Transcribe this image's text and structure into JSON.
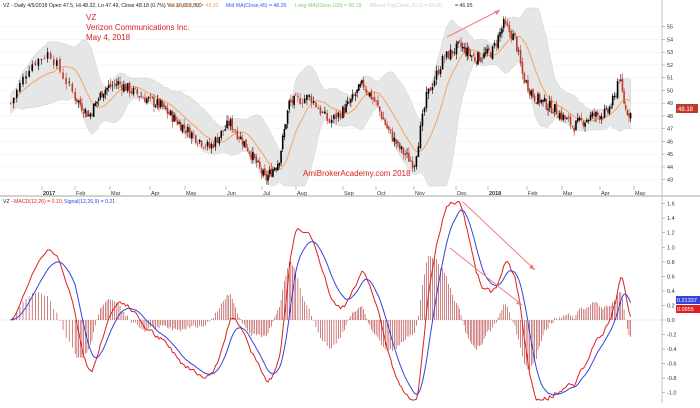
{
  "header": {
    "symbol": "VZ",
    "interval": "Daily",
    "date": "4/5/2018",
    "open": "47.5",
    "high": "48.32",
    "low": "47.49",
    "close": "48.18 (0.7%)",
    "vol": "10,659,800",
    "line_text": "VZ - Daily 4/5/2018 Open 47.5, Hi 48.32, Lo 47.49, Close 48.18 (0.7%) Vol 10,659,800",
    "ma_items": [
      {
        "label": "MA(Close,15) = 48.93",
        "color": "#f4a460"
      },
      {
        "label": "Mid MA(Close,45) = 48.26",
        "color": "#3355ff"
      },
      {
        "label": "Long MA(Close,100) = 50.19",
        "color": "#7ccf6a"
      },
      {
        "label": "BBand Top(Close,20,2) = 50.90,",
        "color": "#cfcfcf"
      },
      {
        "label": "= 46.95",
        "color": "#333333"
      }
    ]
  },
  "annotation": {
    "ticker": "VZ",
    "company": "Verizon Communications Inc.",
    "date": "May 4, 2018",
    "watermark": "AmiBrokerAcademy.com  2018"
  },
  "macd_header": {
    "prefix": "VZ - ",
    "macd_label": "MACD(12,26) = 0.10,",
    "signal_label": "Signal(12,26,9) = 0.21"
  },
  "colors": {
    "up": "#000000",
    "down": "#c0392b",
    "band_fill": "#e6e6e6",
    "ma_short": "#f4a460",
    "macd_line": "#e02020",
    "signal_line": "#3344dd",
    "histogram": "#b03030",
    "annotation": "#d92020",
    "trend_arrow": "#ef8080"
  },
  "axis_labels": {
    "months": [
      "2017",
      "Feb",
      "Mar",
      "Apr",
      "May",
      "Jun",
      "Jul",
      "Aug",
      "Sep",
      "Oct",
      "Nov",
      "Dec",
      "2018",
      "Feb",
      "Mar",
      "Apr",
      "May"
    ]
  },
  "price_tag": "48.18",
  "macd_tags": [
    "0.21337",
    "0.0955"
  ],
  "chart_data": [
    {
      "type": "candlestick",
      "title": "VZ - Daily",
      "series_overlays": [
        "MA(Close,15)",
        "Bollinger Band (Close,20,2)"
      ],
      "ylim": [
        42.5,
        56
      ],
      "yticks": [
        43,
        44,
        45,
        46,
        47,
        48,
        49,
        50,
        51,
        52,
        53,
        54,
        55
      ],
      "last_close": 48.18,
      "knots": [
        {
          "m": 0,
          "p": 49.0
        },
        {
          "m": 0.3,
          "p": 52.0
        },
        {
          "m": 0.6,
          "p": 53.0
        },
        {
          "m": 1.0,
          "p": 49.5
        },
        {
          "m": 1.4,
          "p": 48.0
        },
        {
          "m": 1.8,
          "p": 50.0
        },
        {
          "m": 2.2,
          "p": 50.6
        },
        {
          "m": 2.8,
          "p": 49.5
        },
        {
          "m": 3.3,
          "p": 48.8
        },
        {
          "m": 4.0,
          "p": 47.0
        },
        {
          "m": 4.6,
          "p": 45.5
        },
        {
          "m": 5.1,
          "p": 47.5
        },
        {
          "m": 5.6,
          "p": 45.5
        },
        {
          "m": 6.1,
          "p": 43.0
        },
        {
          "m": 6.5,
          "p": 44.5
        },
        {
          "m": 6.8,
          "p": 49.0
        },
        {
          "m": 7.3,
          "p": 49.5
        },
        {
          "m": 7.7,
          "p": 47.5
        },
        {
          "m": 8.2,
          "p": 49.0
        },
        {
          "m": 8.6,
          "p": 50.5
        },
        {
          "m": 9.0,
          "p": 49.0
        },
        {
          "m": 9.3,
          "p": 47.0
        },
        {
          "m": 9.6,
          "p": 45.5
        },
        {
          "m": 10.0,
          "p": 44.2
        },
        {
          "m": 10.3,
          "p": 49.5
        },
        {
          "m": 10.7,
          "p": 52.5
        },
        {
          "m": 11.1,
          "p": 53.5
        },
        {
          "m": 11.6,
          "p": 52.5
        },
        {
          "m": 12.1,
          "p": 53.0
        },
        {
          "m": 12.4,
          "p": 55.2
        },
        {
          "m": 12.7,
          "p": 54.0
        },
        {
          "m": 12.9,
          "p": 51.0
        },
        {
          "m": 13.2,
          "p": 49.5
        },
        {
          "m": 13.8,
          "p": 48.5
        },
        {
          "m": 14.3,
          "p": 47.2
        },
        {
          "m": 14.8,
          "p": 48.0
        },
        {
          "m": 15.2,
          "p": 48.2
        },
        {
          "m": 15.45,
          "p": 49.5
        },
        {
          "m": 15.55,
          "p": 51.3
        },
        {
          "m": 15.75,
          "p": 48.5
        },
        {
          "m": 15.9,
          "p": 48.18
        }
      ]
    },
    {
      "type": "line",
      "title": "MACD(12,26), Signal(12,26,9)",
      "series": [
        {
          "name": "MACD(12,26)",
          "color": "#e02020"
        },
        {
          "name": "Signal(12,26,9)",
          "color": "#3344dd"
        },
        {
          "name": "Histogram",
          "color": "#b03030"
        }
      ],
      "ylim": [
        -1.1,
        1.65
      ],
      "yticks": [
        -1.0,
        -0.8,
        -0.6,
        -0.4,
        -0.2,
        0.0,
        0.2,
        0.4,
        0.6,
        0.8,
        1.0,
        1.2,
        1.4,
        1.6
      ],
      "last_values": {
        "macd": 0.1,
        "signal": 0.21
      }
    }
  ]
}
